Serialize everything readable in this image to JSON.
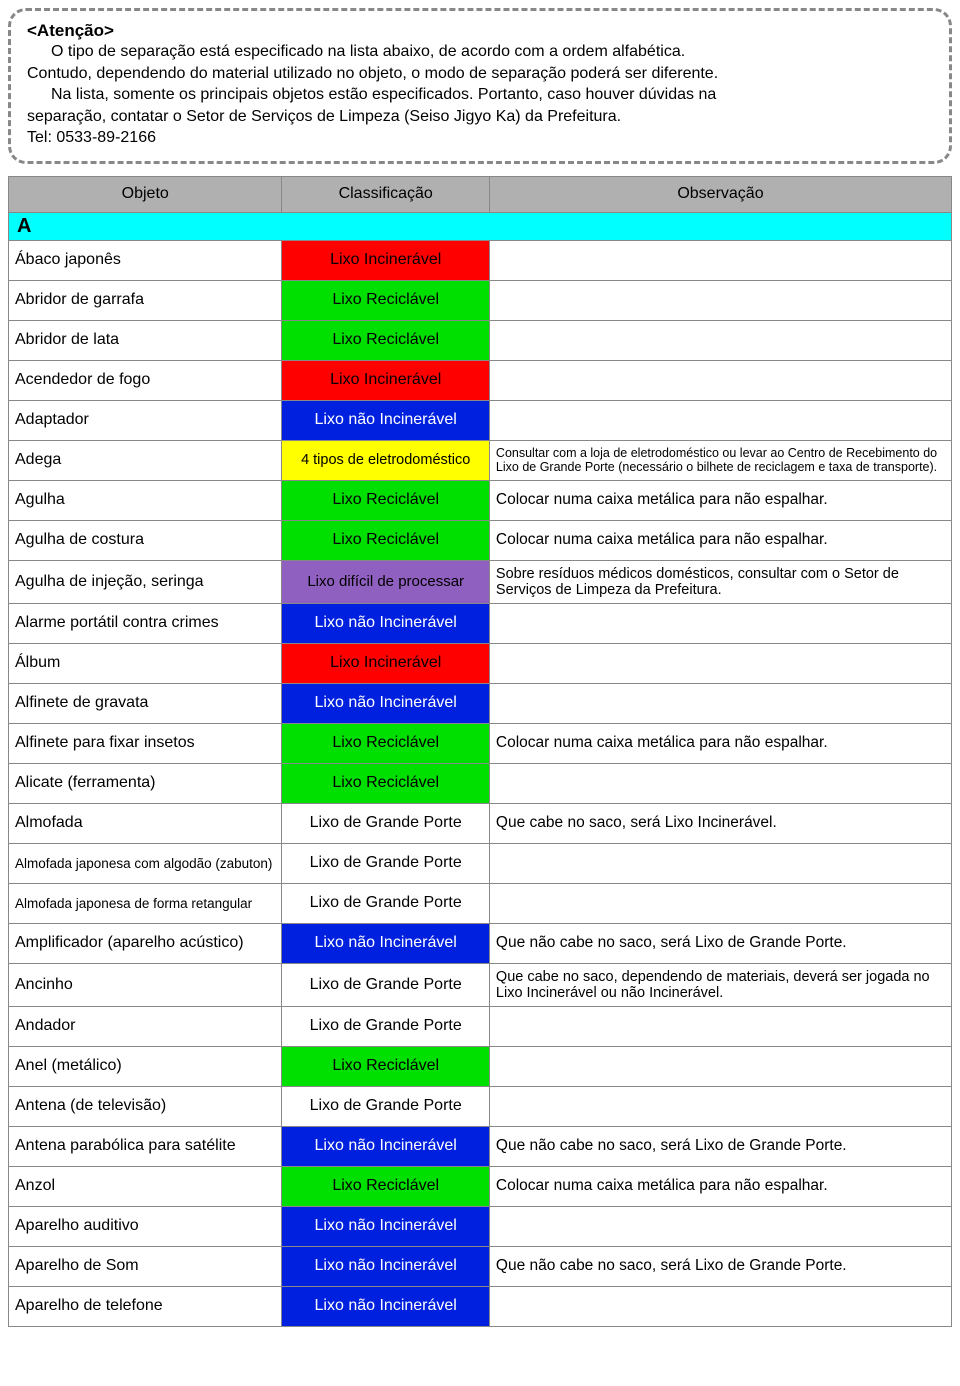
{
  "notice": {
    "title": "<Atenção>",
    "line1": "O tipo de separação está especificado na lista abaixo, de acordo com a ordem alfabética.",
    "line2": "Contudo, dependendo do material utilizado no objeto, o modo de separação poderá ser diferente.",
    "line3": "Na lista, somente os principais objetos estão especificados. Portanto, caso houver dúvidas na",
    "line4": "separação, contatar o Setor de Serviços de Limpeza (Seiso Jigyo Ka) da Prefeitura.",
    "line5": "Tel: 0533-89-2166"
  },
  "headers": {
    "objeto": "Objeto",
    "classificacao": "Classificação",
    "observacao": "Observação"
  },
  "class_labels": {
    "incin": "Lixo Incinerável",
    "recicl": "Lixo Reciclável",
    "naoincin": "Lixo não Incinerável",
    "eletro": "4 tipos de eletrodoméstico",
    "dificil": "Lixo difícil de processar",
    "grande": "Lixo de Grande Porte"
  },
  "class_colors": {
    "incin_bg": "#ff0000",
    "incin_fg": "#000000",
    "recicl_bg": "#00e000",
    "recicl_fg": "#000000",
    "naoincin_bg": "#0020e0",
    "naoincin_fg": "#ffffff",
    "eletro_bg": "#ffff00",
    "eletro_fg": "#000000",
    "dificil_bg": "#9060c0",
    "dificil_fg": "#000000",
    "grande_bg": "#ffffff",
    "grande_fg": "#000000",
    "header_bg": "#b0b0b0",
    "section_bg": "#00ffff",
    "border": "#888888"
  },
  "section_label": "A",
  "rows": [
    {
      "obj": "Ábaco japonês",
      "cl": "incin",
      "obs": ""
    },
    {
      "obj": "Abridor de garrafa",
      "cl": "recicl",
      "obs": ""
    },
    {
      "obj": "Abridor de lata",
      "cl": "recicl",
      "obs": ""
    },
    {
      "obj": "Acendedor de fogo",
      "cl": "incin",
      "obs": ""
    },
    {
      "obj": "Adaptador",
      "cl": "naoincin",
      "obs": ""
    },
    {
      "obj": "Adega",
      "cl": "eletro",
      "obs": "Consultar com a loja de eletrodoméstico ou levar ao Centro de Recebimento do Lixo de Grande Porte (necessário o bilhete de reciclagem e taxa de transporte).",
      "obs_small": true
    },
    {
      "obj": "Agulha",
      "cl": "recicl",
      "obs": "Colocar numa caixa metálica para não espalhar."
    },
    {
      "obj": "Agulha de costura",
      "cl": "recicl",
      "obs": "Colocar numa caixa metálica para não espalhar."
    },
    {
      "obj": "Agulha de injeção, seringa",
      "cl": "dificil",
      "obs": "Sobre resíduos médicos domésticos, consultar com o Setor de Serviços de Limpeza da Prefeitura.",
      "obs_med": true
    },
    {
      "obj": "Alarme portátil contra crimes",
      "cl": "naoincin",
      "obs": ""
    },
    {
      "obj": "Álbum",
      "cl": "incin",
      "obs": ""
    },
    {
      "obj": "Alfinete de gravata",
      "cl": "naoincin",
      "obs": ""
    },
    {
      "obj": "Alfinete para fixar insetos",
      "cl": "recicl",
      "obs": "Colocar numa caixa metálica para não espalhar."
    },
    {
      "obj": "Alicate (ferramenta)",
      "cl": "recicl",
      "obs": ""
    },
    {
      "obj": "Almofada",
      "cl": "grande",
      "obs": "Que cabe no saco, será Lixo Incinerável."
    },
    {
      "obj": "Almofada japonesa com algodão (zabuton)",
      "cl": "grande",
      "obs": "",
      "obj_small": true
    },
    {
      "obj": "Almofada japonesa de forma retangular",
      "cl": "grande",
      "obs": "",
      "obj_small": true
    },
    {
      "obj": "Amplificador (aparelho acústico)",
      "cl": "naoincin",
      "obs": "Que não cabe no saco, será Lixo de Grande Porte."
    },
    {
      "obj": "Ancinho",
      "cl": "grande",
      "obs": "Que cabe no saco, dependendo de materiais, deverá ser jogada no Lixo Incinerável ou não Incinerável.",
      "obs_med": true
    },
    {
      "obj": "Andador",
      "cl": "grande",
      "obs": ""
    },
    {
      "obj": "Anel (metálico)",
      "cl": "recicl",
      "obs": ""
    },
    {
      "obj": "Antena (de televisão)",
      "cl": "grande",
      "obs": ""
    },
    {
      "obj": "Antena parabólica para satélite",
      "cl": "naoincin",
      "obs": "Que não cabe no saco, será Lixo de Grande Porte."
    },
    {
      "obj": "Anzol",
      "cl": "recicl",
      "obs": "Colocar numa caixa metálica para não espalhar."
    },
    {
      "obj": "Aparelho auditivo",
      "cl": "naoincin",
      "obs": ""
    },
    {
      "obj": "Aparelho de Som",
      "cl": "naoincin",
      "obs": "Que não cabe no saco, será Lixo de Grande Porte."
    },
    {
      "obj": "Aparelho de telefone",
      "cl": "naoincin",
      "obs": ""
    }
  ]
}
